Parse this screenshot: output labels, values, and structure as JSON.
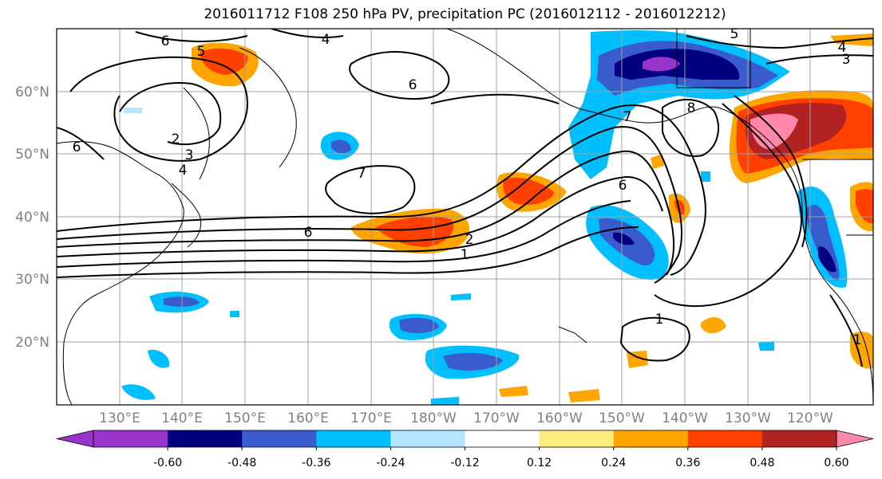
{
  "title": "2016011712 F108 250 hPa PV, precipitation PC (2016012112 - 2016012212)",
  "map": {
    "lon_labels": [
      "130°E",
      "140°E",
      "150°E",
      "160°E",
      "170°E",
      "180°W",
      "170°W",
      "160°W",
      "150°W",
      "140°W",
      "130°W",
      "120°W"
    ],
    "lat_labels": [
      "60°N",
      "50°N",
      "40°N",
      "30°N",
      "20°N"
    ],
    "contour_labels": [
      "6",
      "4",
      "5",
      "6",
      "2",
      "3",
      "4",
      "6",
      "7",
      "6",
      "2",
      "1",
      "7",
      "6",
      "8",
      "5",
      "4",
      "3",
      "1",
      "1"
    ],
    "colors": {
      "colorbar_bins": [
        "#9933cc",
        "#000080",
        "#3a5bcc",
        "#00bfff",
        "#b3e5ff",
        "#ffffff",
        "#ffec80",
        "#ffa500",
        "#ff4000",
        "#b22222",
        "#ff88aa"
      ]
    }
  },
  "colorbar": {
    "labels": [
      "-0.60",
      "-0.48",
      "-0.36",
      "-0.24",
      "-0.12",
      "0.12",
      "0.24",
      "0.36",
      "0.48",
      "0.60"
    ]
  }
}
